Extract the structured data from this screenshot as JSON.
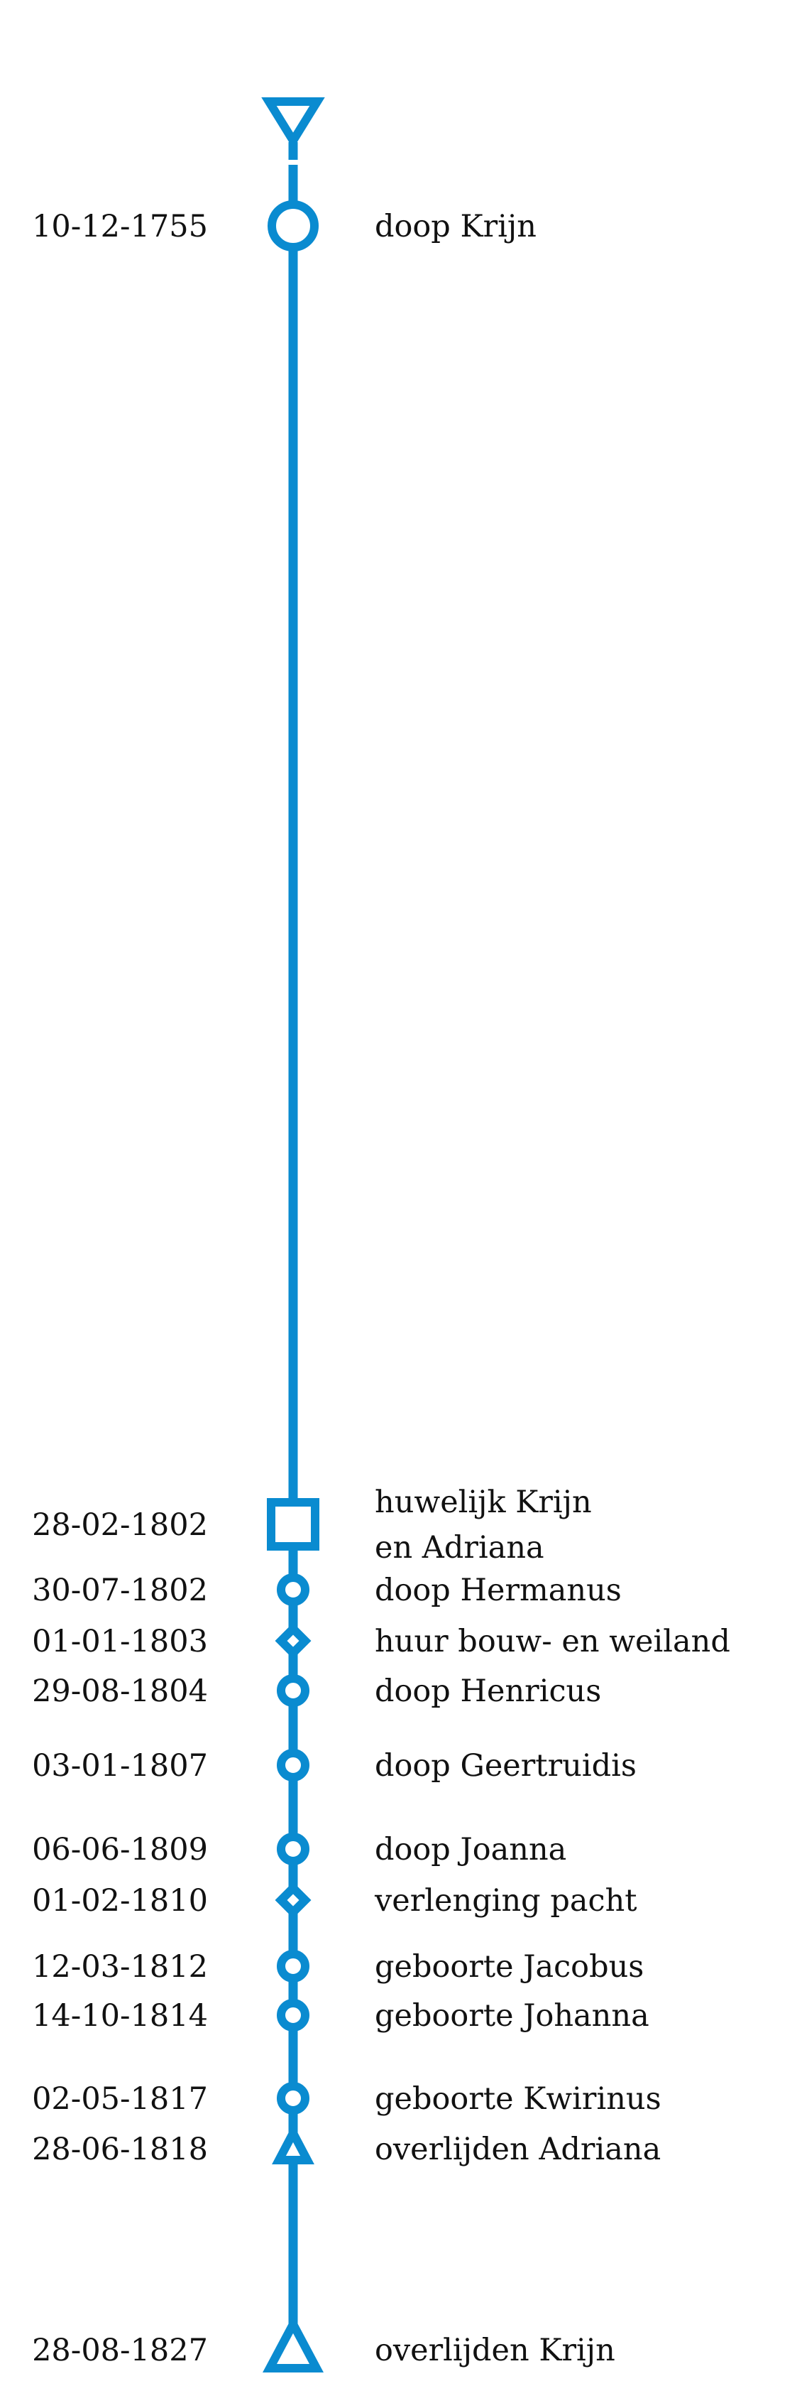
{
  "style": {
    "line_color": "#0a8bd0",
    "text_color": "#111111"
  },
  "chart_data": {
    "type": "timeline",
    "title": "",
    "start_marker": "triangle-down",
    "end_marker": "triangle-up",
    "events": [
      {
        "date": "10-12-1755",
        "label": [
          "doop Krijn"
        ],
        "marker": "circle-large"
      },
      {
        "date": "28-02-1802",
        "label": [
          "huwelijk Krijn",
          "en Adriana"
        ],
        "marker": "square"
      },
      {
        "date": "30-07-1802",
        "label": [
          "doop Hermanus"
        ],
        "marker": "circle"
      },
      {
        "date": "01-01-1803",
        "label": [
          "huur bouw- en weiland"
        ],
        "marker": "diamond"
      },
      {
        "date": "29-08-1804",
        "label": [
          "doop Henricus"
        ],
        "marker": "circle"
      },
      {
        "date": "03-01-1807",
        "label": [
          "doop Geertruidis"
        ],
        "marker": "circle"
      },
      {
        "date": "06-06-1809",
        "label": [
          "doop Joanna"
        ],
        "marker": "circle"
      },
      {
        "date": "01-02-1810",
        "label": [
          "verlenging pacht"
        ],
        "marker": "diamond"
      },
      {
        "date": "12-03-1812",
        "label": [
          "geboorte Jacobus"
        ],
        "marker": "circle"
      },
      {
        "date": "14-10-1814",
        "label": [
          "geboorte Johanna"
        ],
        "marker": "circle"
      },
      {
        "date": "02-05-1817",
        "label": [
          "geboorte Kwirinus"
        ],
        "marker": "circle"
      },
      {
        "date": "28-06-1818",
        "label": [
          "overlijden Adriana"
        ],
        "marker": "triangle-up-small"
      },
      {
        "date": "28-08-1827",
        "label": [
          "overlijden Krijn"
        ],
        "marker": "triangle-up-large"
      }
    ]
  }
}
